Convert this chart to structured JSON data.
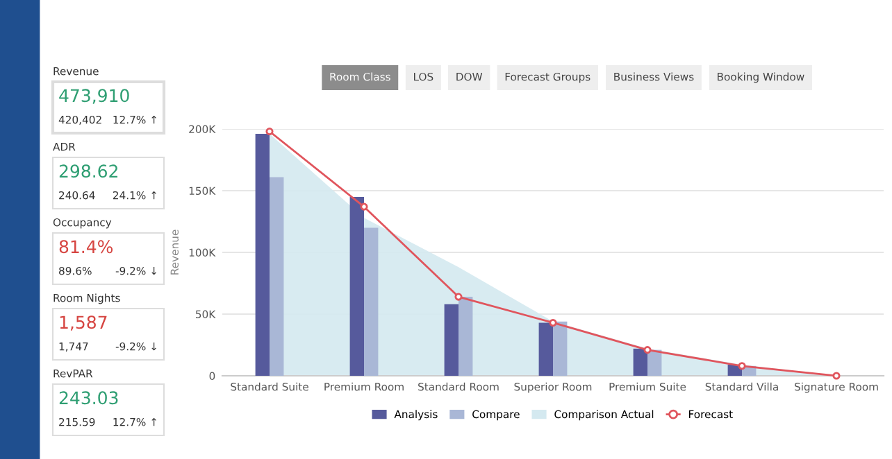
{
  "chart_data": [
    {
      "type": "other",
      "annotations": [
        "Revenue",
        "473,910",
        "420,402",
        "12.7% ↑",
        "ADR",
        "298.62",
        "240.64",
        "24.1% ↑",
        "Occupancy",
        "81.4%",
        "89.6%",
        "-9.2% ↓",
        "Room Nights",
        "1,587",
        "1,747",
        "-9.2% ↓",
        "RevPAR",
        "243.03",
        "215.59",
        "12.7% ↑"
      ],
      "colors": [
        "#2e9e72",
        "#2e9e72",
        "#d64541",
        "#d64541",
        "#2e9e72"
      ]
    },
    {
      "type": "other",
      "annotations": [
        "Room Class",
        "LOS",
        "DOW",
        "Forecast Groups",
        "Business Views",
        "Booking Window"
      ]
    },
    {
      "type": "bar",
      "ylabel": "Revenue",
      "categories": [
        "Standard Suite",
        "Premium Room",
        "Standard Room",
        "Superior Room",
        "Premium Suite",
        "Standard Villa",
        "Signature Room"
      ],
      "series": [
        {
          "name": "Analysis",
          "type": "bar",
          "color": "#565a9c",
          "values": [
            196000,
            145000,
            58000,
            43000,
            22000,
            9000,
            0
          ]
        },
        {
          "name": "Compare",
          "type": "bar",
          "color": "#a9b7d6",
          "values": [
            161000,
            120000,
            64000,
            44000,
            21000,
            8000,
            0
          ]
        },
        {
          "name": "Comparison Actual",
          "type": "area",
          "color": "#d4e9f0",
          "values": [
            196000,
            128000,
            88000,
            44000,
            22000,
            9000,
            0
          ]
        },
        {
          "name": "Forecast",
          "type": "line",
          "marker": "circle",
          "color": "#e0555d",
          "values": [
            198000,
            137000,
            64000,
            43000,
            21000,
            8000,
            0
          ]
        }
      ],
      "ylim": [
        0,
        200000
      ],
      "yticks": [
        0,
        {
          "value": 50000,
          "label": "50K"
        },
        {
          "value": 100000,
          "label": "100K"
        },
        {
          "value": 150000,
          "label": "150K"
        },
        {
          "value": 200000,
          "label": "200K"
        }
      ],
      "grid": "y",
      "legend": "bottom",
      "line_style": "solid"
    }
  ]
}
